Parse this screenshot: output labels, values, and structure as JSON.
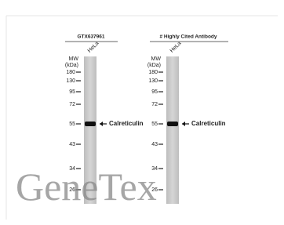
{
  "panels": [
    {
      "title": "GTX637961",
      "lane": "HeLa",
      "mw_label": "MW",
      "mw_unit": "(kDa)",
      "markers": [
        180,
        130,
        95,
        72,
        55,
        43,
        34,
        26
      ],
      "band_label": "Calreticulin"
    },
    {
      "title": "# Highly Cited Antibody",
      "lane": "HeLa",
      "mw_label": "MW",
      "mw_unit": "(kDa)",
      "markers": [
        180,
        130,
        95,
        72,
        55,
        43,
        34,
        26
      ],
      "band_label": "Calreticulin"
    }
  ],
  "watermark": "GeneTex"
}
